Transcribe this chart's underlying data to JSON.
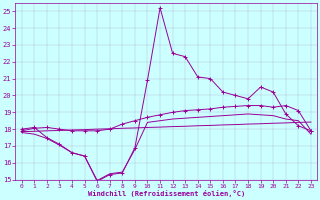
{
  "x": [
    0,
    1,
    2,
    3,
    4,
    5,
    6,
    7,
    8,
    9,
    10,
    11,
    12,
    13,
    14,
    15,
    16,
    17,
    18,
    19,
    20,
    21,
    22,
    23
  ],
  "y_main": [
    18.0,
    18.1,
    17.5,
    17.1,
    16.6,
    16.4,
    14.9,
    15.3,
    15.4,
    16.9,
    20.9,
    25.2,
    22.5,
    22.3,
    21.1,
    21.0,
    20.2,
    20.0,
    19.8,
    20.5,
    20.2,
    18.9,
    18.2,
    17.9
  ],
  "y_upper": [
    17.9,
    18.05,
    18.1,
    18.0,
    17.9,
    17.9,
    17.9,
    18.0,
    18.3,
    18.5,
    18.7,
    18.85,
    19.0,
    19.1,
    19.15,
    19.2,
    19.3,
    19.35,
    19.4,
    19.4,
    19.3,
    19.4,
    19.1,
    17.9
  ],
  "y_lower": [
    17.8,
    17.7,
    17.45,
    17.05,
    16.6,
    16.4,
    14.95,
    15.35,
    15.45,
    16.8,
    18.4,
    18.5,
    18.6,
    18.65,
    18.7,
    18.75,
    18.8,
    18.85,
    18.9,
    18.85,
    18.8,
    18.6,
    18.5,
    17.7
  ],
  "y_trend": [
    17.85,
    17.87,
    17.9,
    17.92,
    17.95,
    17.97,
    18.0,
    18.02,
    18.05,
    18.07,
    18.1,
    18.12,
    18.15,
    18.17,
    18.2,
    18.22,
    18.25,
    18.27,
    18.3,
    18.32,
    18.35,
    18.37,
    18.4,
    18.42
  ],
  "ylim": [
    15,
    25.5
  ],
  "xlim": [
    -0.5,
    23.5
  ],
  "yticks": [
    15,
    16,
    17,
    18,
    19,
    20,
    21,
    22,
    23,
    24,
    25
  ],
  "xticks": [
    0,
    1,
    2,
    3,
    4,
    5,
    6,
    7,
    8,
    9,
    10,
    11,
    12,
    13,
    14,
    15,
    16,
    17,
    18,
    19,
    20,
    21,
    22,
    23
  ],
  "xlabel": "Windchill (Refroidissement éolien,°C)",
  "line_color": "#990099",
  "bg_color": "#ccffff",
  "grid_color": "#aaaacc"
}
